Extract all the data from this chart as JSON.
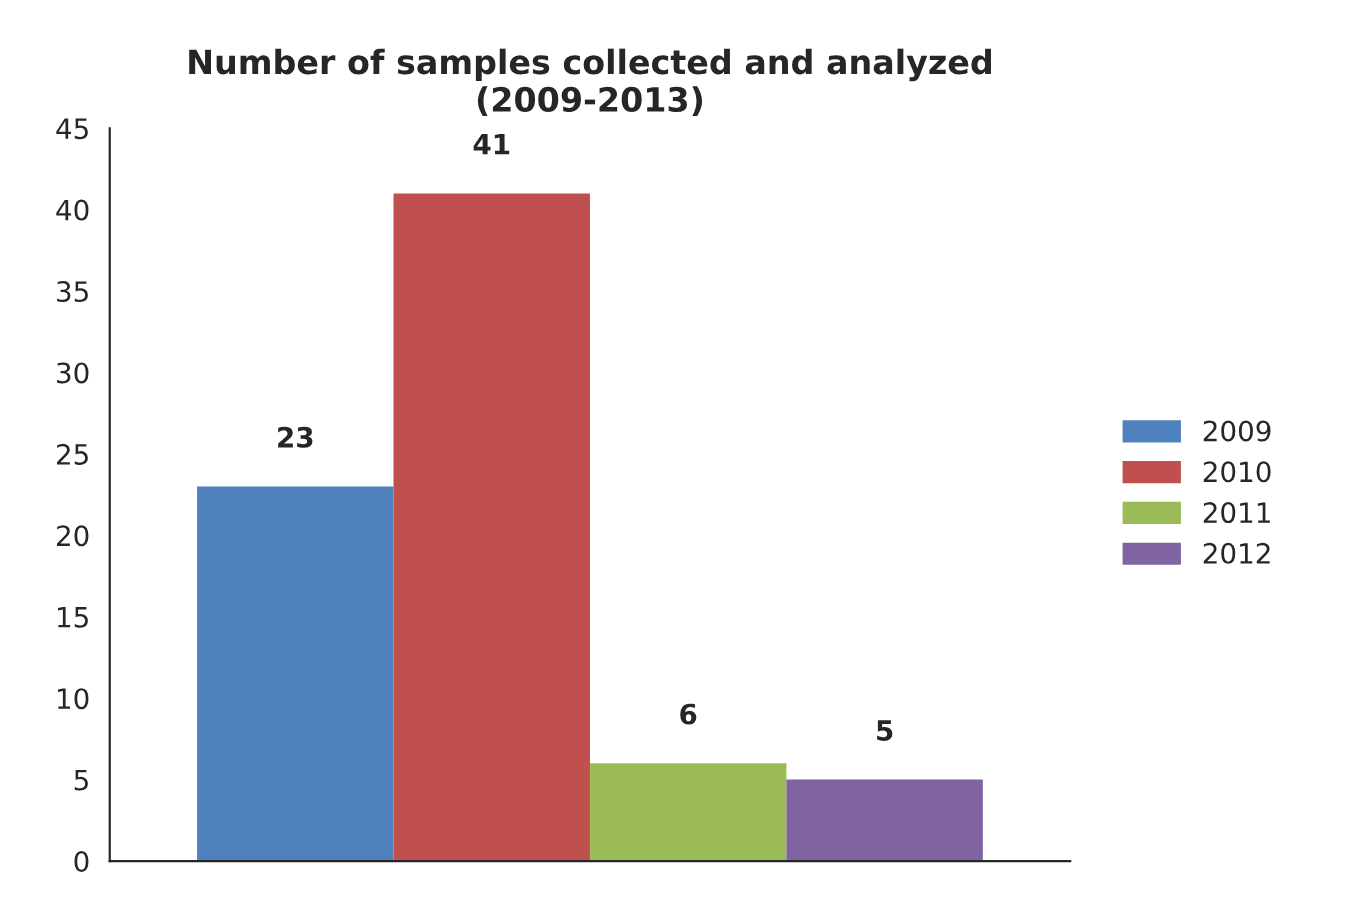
{
  "chart_data": {
    "type": "bar",
    "title": "Number of samples collected and analyzed\n(2009-2013)",
    "categories": [
      null
    ],
    "series": [
      {
        "name": "2009",
        "color": "#4f81bd",
        "values": [
          23
        ]
      },
      {
        "name": "2010",
        "color": "#c0504d",
        "values": [
          41
        ]
      },
      {
        "name": "2011",
        "color": "#9bbb59",
        "values": [
          6
        ]
      },
      {
        "name": "2012",
        "color": "#8064a2",
        "values": [
          5
        ]
      }
    ],
    "ylim": [
      0,
      45
    ],
    "yticks": [
      0,
      5,
      10,
      15,
      20,
      25,
      30,
      35,
      40,
      45
    ],
    "data_labels": true,
    "legend": "right",
    "grid": false
  }
}
